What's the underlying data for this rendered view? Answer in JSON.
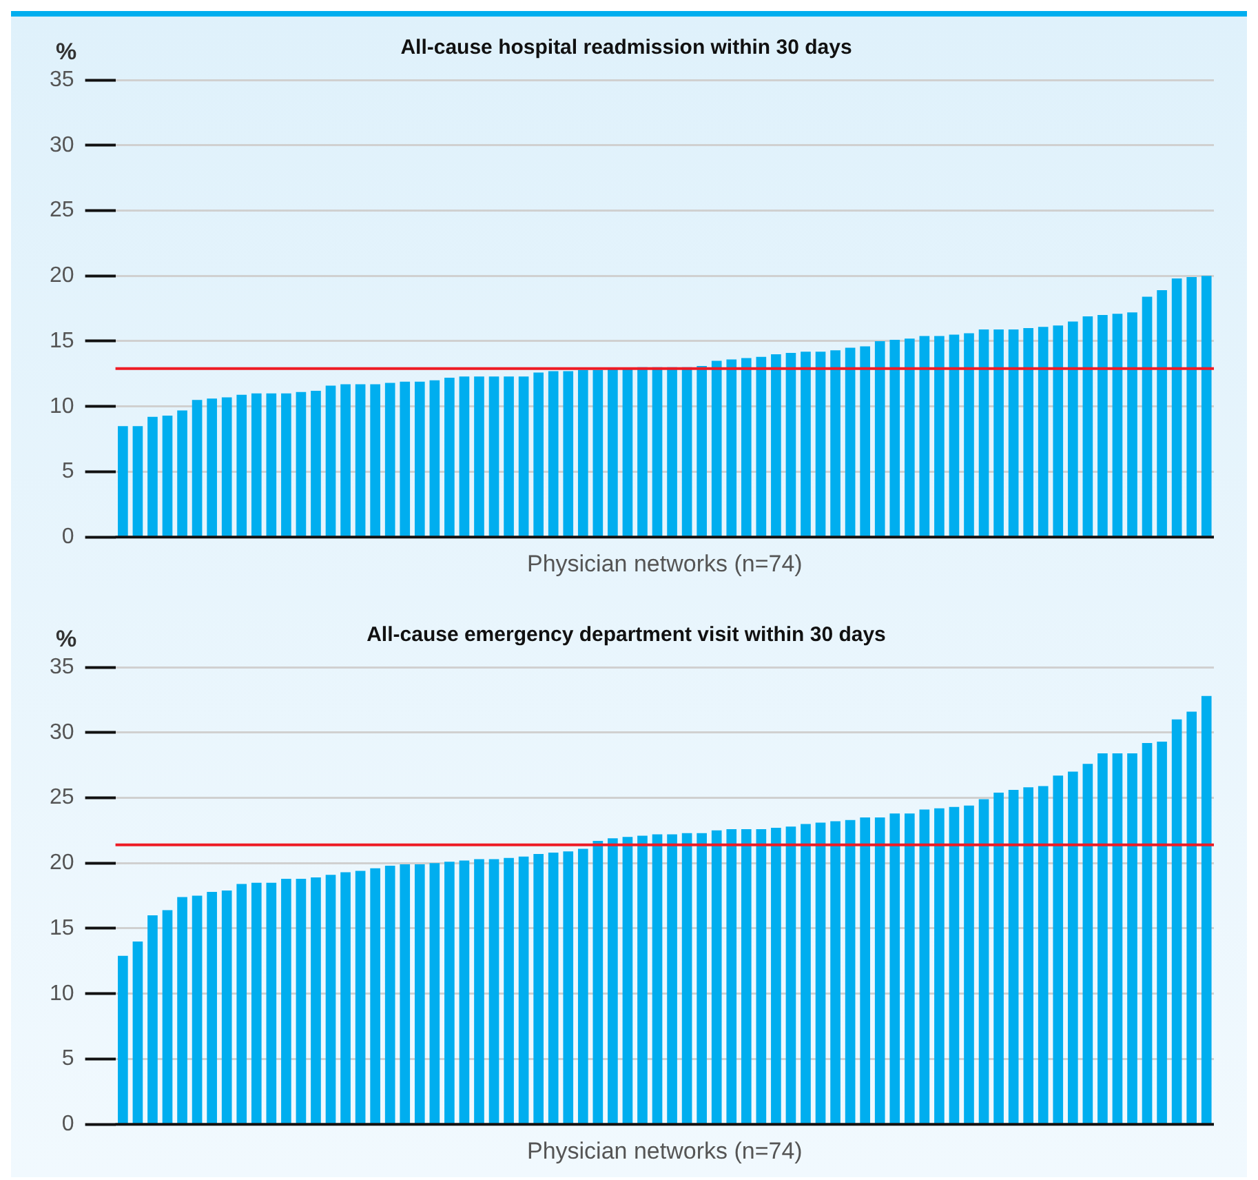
{
  "chart_data": [
    {
      "type": "bar",
      "title": "All-cause hospital readmission within 30 days",
      "ylabel": "%",
      "xlabel": "Physician networks (n=74)",
      "categories": [
        null,
        null,
        null,
        null,
        null,
        null,
        null,
        null,
        null,
        null,
        null,
        null,
        null,
        null,
        null,
        null,
        null,
        null,
        null,
        null,
        null,
        null,
        null,
        null,
        null,
        null,
        null,
        null,
        null,
        null,
        null,
        null,
        null,
        null,
        null,
        null,
        null,
        null,
        null,
        null,
        null,
        null,
        null,
        null,
        null,
        null,
        null,
        null,
        null,
        null,
        null,
        null,
        null,
        null,
        null,
        null,
        null,
        null,
        null,
        null,
        null,
        null,
        null,
        null,
        null,
        null,
        null,
        null,
        null,
        null,
        null,
        null,
        null,
        null
      ],
      "values": [
        8.5,
        8.5,
        9.2,
        9.3,
        9.7,
        10.5,
        10.6,
        10.7,
        10.9,
        11.0,
        11.0,
        11.0,
        11.1,
        11.2,
        11.6,
        11.7,
        11.7,
        11.7,
        11.8,
        11.9,
        11.9,
        12.0,
        12.2,
        12.3,
        12.3,
        12.3,
        12.3,
        12.3,
        12.6,
        12.7,
        12.7,
        12.8,
        12.8,
        12.9,
        12.9,
        13.0,
        13.0,
        13.0,
        13.0,
        13.1,
        13.5,
        13.6,
        13.7,
        13.8,
        14.0,
        14.1,
        14.2,
        14.2,
        14.3,
        14.5,
        14.6,
        15.0,
        15.1,
        15.2,
        15.4,
        15.4,
        15.5,
        15.6,
        15.9,
        15.9,
        15.9,
        16.0,
        16.1,
        16.2,
        16.5,
        16.9,
        17.0,
        17.1,
        17.2,
        18.4,
        18.9,
        19.8,
        19.9,
        20.0
      ],
      "color": "#00aeef",
      "ylim": [
        0,
        35
      ],
      "yticks": [
        0,
        5,
        10,
        15,
        20,
        25,
        30,
        35
      ],
      "grid": "y",
      "ref_lines": [
        {
          "axis": "y",
          "value": 12.9,
          "color": "#ee1c25"
        }
      ]
    },
    {
      "type": "bar",
      "title": "All-cause emergency department visit within 30 days",
      "ylabel": "%",
      "xlabel": "Physician networks (n=74)",
      "categories": [
        null,
        null,
        null,
        null,
        null,
        null,
        null,
        null,
        null,
        null,
        null,
        null,
        null,
        null,
        null,
        null,
        null,
        null,
        null,
        null,
        null,
        null,
        null,
        null,
        null,
        null,
        null,
        null,
        null,
        null,
        null,
        null,
        null,
        null,
        null,
        null,
        null,
        null,
        null,
        null,
        null,
        null,
        null,
        null,
        null,
        null,
        null,
        null,
        null,
        null,
        null,
        null,
        null,
        null,
        null,
        null,
        null,
        null,
        null,
        null,
        null,
        null,
        null,
        null,
        null,
        null,
        null,
        null,
        null,
        null,
        null,
        null,
        null,
        null
      ],
      "values": [
        12.9,
        14.0,
        16.0,
        16.4,
        17.4,
        17.5,
        17.8,
        17.9,
        18.4,
        18.5,
        18.5,
        18.8,
        18.8,
        18.9,
        19.1,
        19.3,
        19.4,
        19.6,
        19.8,
        19.9,
        19.9,
        20.0,
        20.1,
        20.2,
        20.3,
        20.3,
        20.4,
        20.5,
        20.7,
        20.8,
        20.9,
        21.1,
        21.7,
        21.9,
        22.0,
        22.1,
        22.2,
        22.2,
        22.3,
        22.3,
        22.5,
        22.6,
        22.6,
        22.6,
        22.7,
        22.8,
        23.0,
        23.1,
        23.2,
        23.3,
        23.5,
        23.5,
        23.8,
        23.8,
        24.1,
        24.2,
        24.3,
        24.4,
        24.9,
        25.4,
        25.6,
        25.8,
        25.9,
        26.7,
        27.0,
        27.6,
        28.4,
        28.4,
        28.4,
        29.2,
        29.3,
        31.0,
        31.6,
        32.8
      ],
      "color": "#00aeef",
      "ylim": [
        0,
        35
      ],
      "yticks": [
        0,
        5,
        10,
        15,
        20,
        25,
        30,
        35
      ],
      "grid": "y",
      "ref_lines": [
        {
          "axis": "y",
          "value": 21.4,
          "color": "#ee1c25"
        }
      ]
    }
  ]
}
